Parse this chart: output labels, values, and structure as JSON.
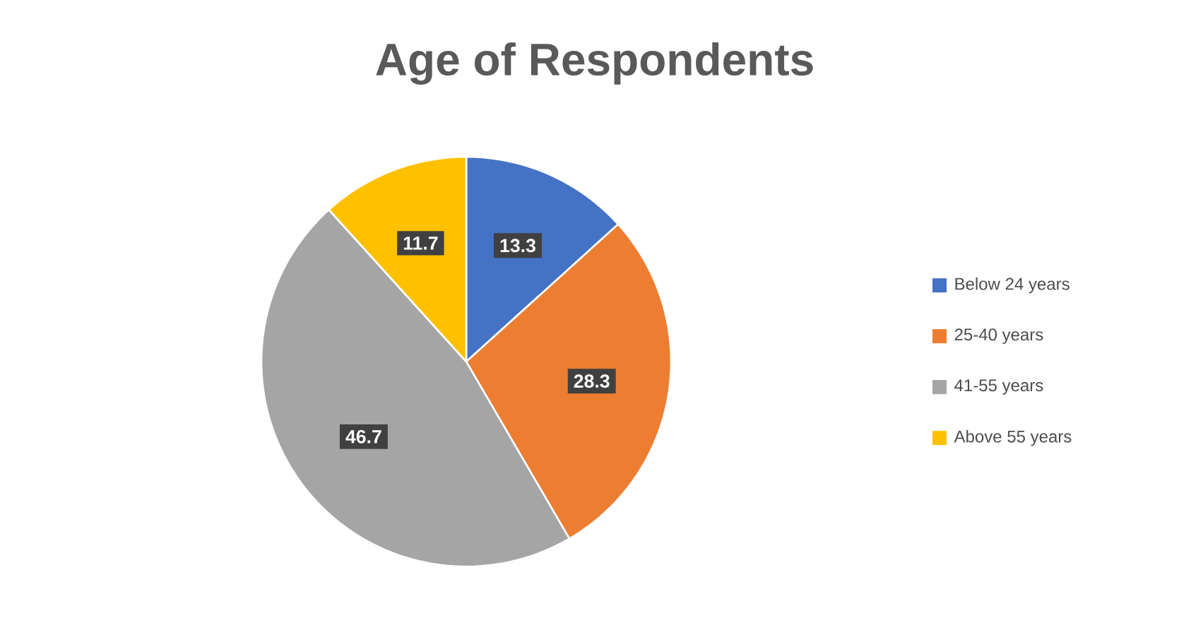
{
  "chart_data": {
    "type": "pie",
    "title": "Age of Respondents",
    "categories": [
      "Below 24 years",
      "25-40 years",
      "41-55 years",
      "Above 55 years"
    ],
    "values": [
      13.3,
      28.3,
      46.7,
      11.7
    ],
    "colors": [
      "#4472c4",
      "#ed7d31",
      "#a5a5a5",
      "#ffc000"
    ],
    "data_labels": true,
    "legend": "right"
  }
}
